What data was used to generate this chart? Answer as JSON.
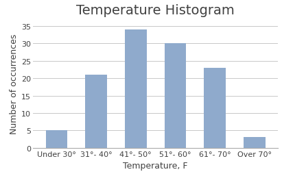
{
  "title": "Temperature Histogram",
  "xlabel": "Temperature, F",
  "ylabel": "Number of occurrences",
  "categories": [
    "Under 30°",
    "31°- 40°",
    "41°- 50°",
    "51°- 60°",
    "61°- 70°",
    "Over 70°"
  ],
  "values": [
    5,
    21,
    34,
    30,
    23,
    3
  ],
  "bar_color": "#8FAACC",
  "ylim": [
    0,
    37
  ],
  "yticks": [
    0,
    5,
    10,
    15,
    20,
    25,
    30,
    35
  ],
  "background_color": "#ffffff",
  "grid_color": "#c8c8c8",
  "title_fontsize": 14,
  "axis_label_fontsize": 9,
  "tick_fontsize": 8
}
